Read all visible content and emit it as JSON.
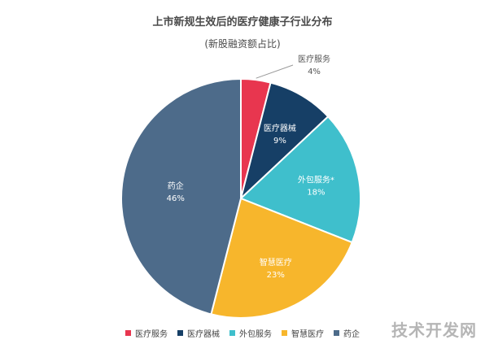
{
  "watermark": "技术开发网",
  "chart_data": {
    "type": "pie",
    "title": "上市新规生效后的医疗健康子行业分布",
    "subtitle": "(新股融资额占比)",
    "legend_position": "bottom",
    "slices": [
      {
        "label": "医疗服务",
        "value": 4,
        "value_label": "4%",
        "color": "#e8364f"
      },
      {
        "label": "医疗器械",
        "value": 9,
        "value_label": "9%",
        "color": "#163f66"
      },
      {
        "label": "外包服务*",
        "value": 18,
        "value_label": "18%",
        "color": "#3fbfcc"
      },
      {
        "label": "智慧医疗",
        "value": 23,
        "value_label": "23%",
        "color": "#f7b62c"
      },
      {
        "label": "药企",
        "value": 46,
        "value_label": "46%",
        "color": "#4d6b8a"
      }
    ],
    "legend": [
      "医疗服务",
      "医疗器械",
      "外包服务",
      "智慧医疗",
      "药企"
    ]
  }
}
